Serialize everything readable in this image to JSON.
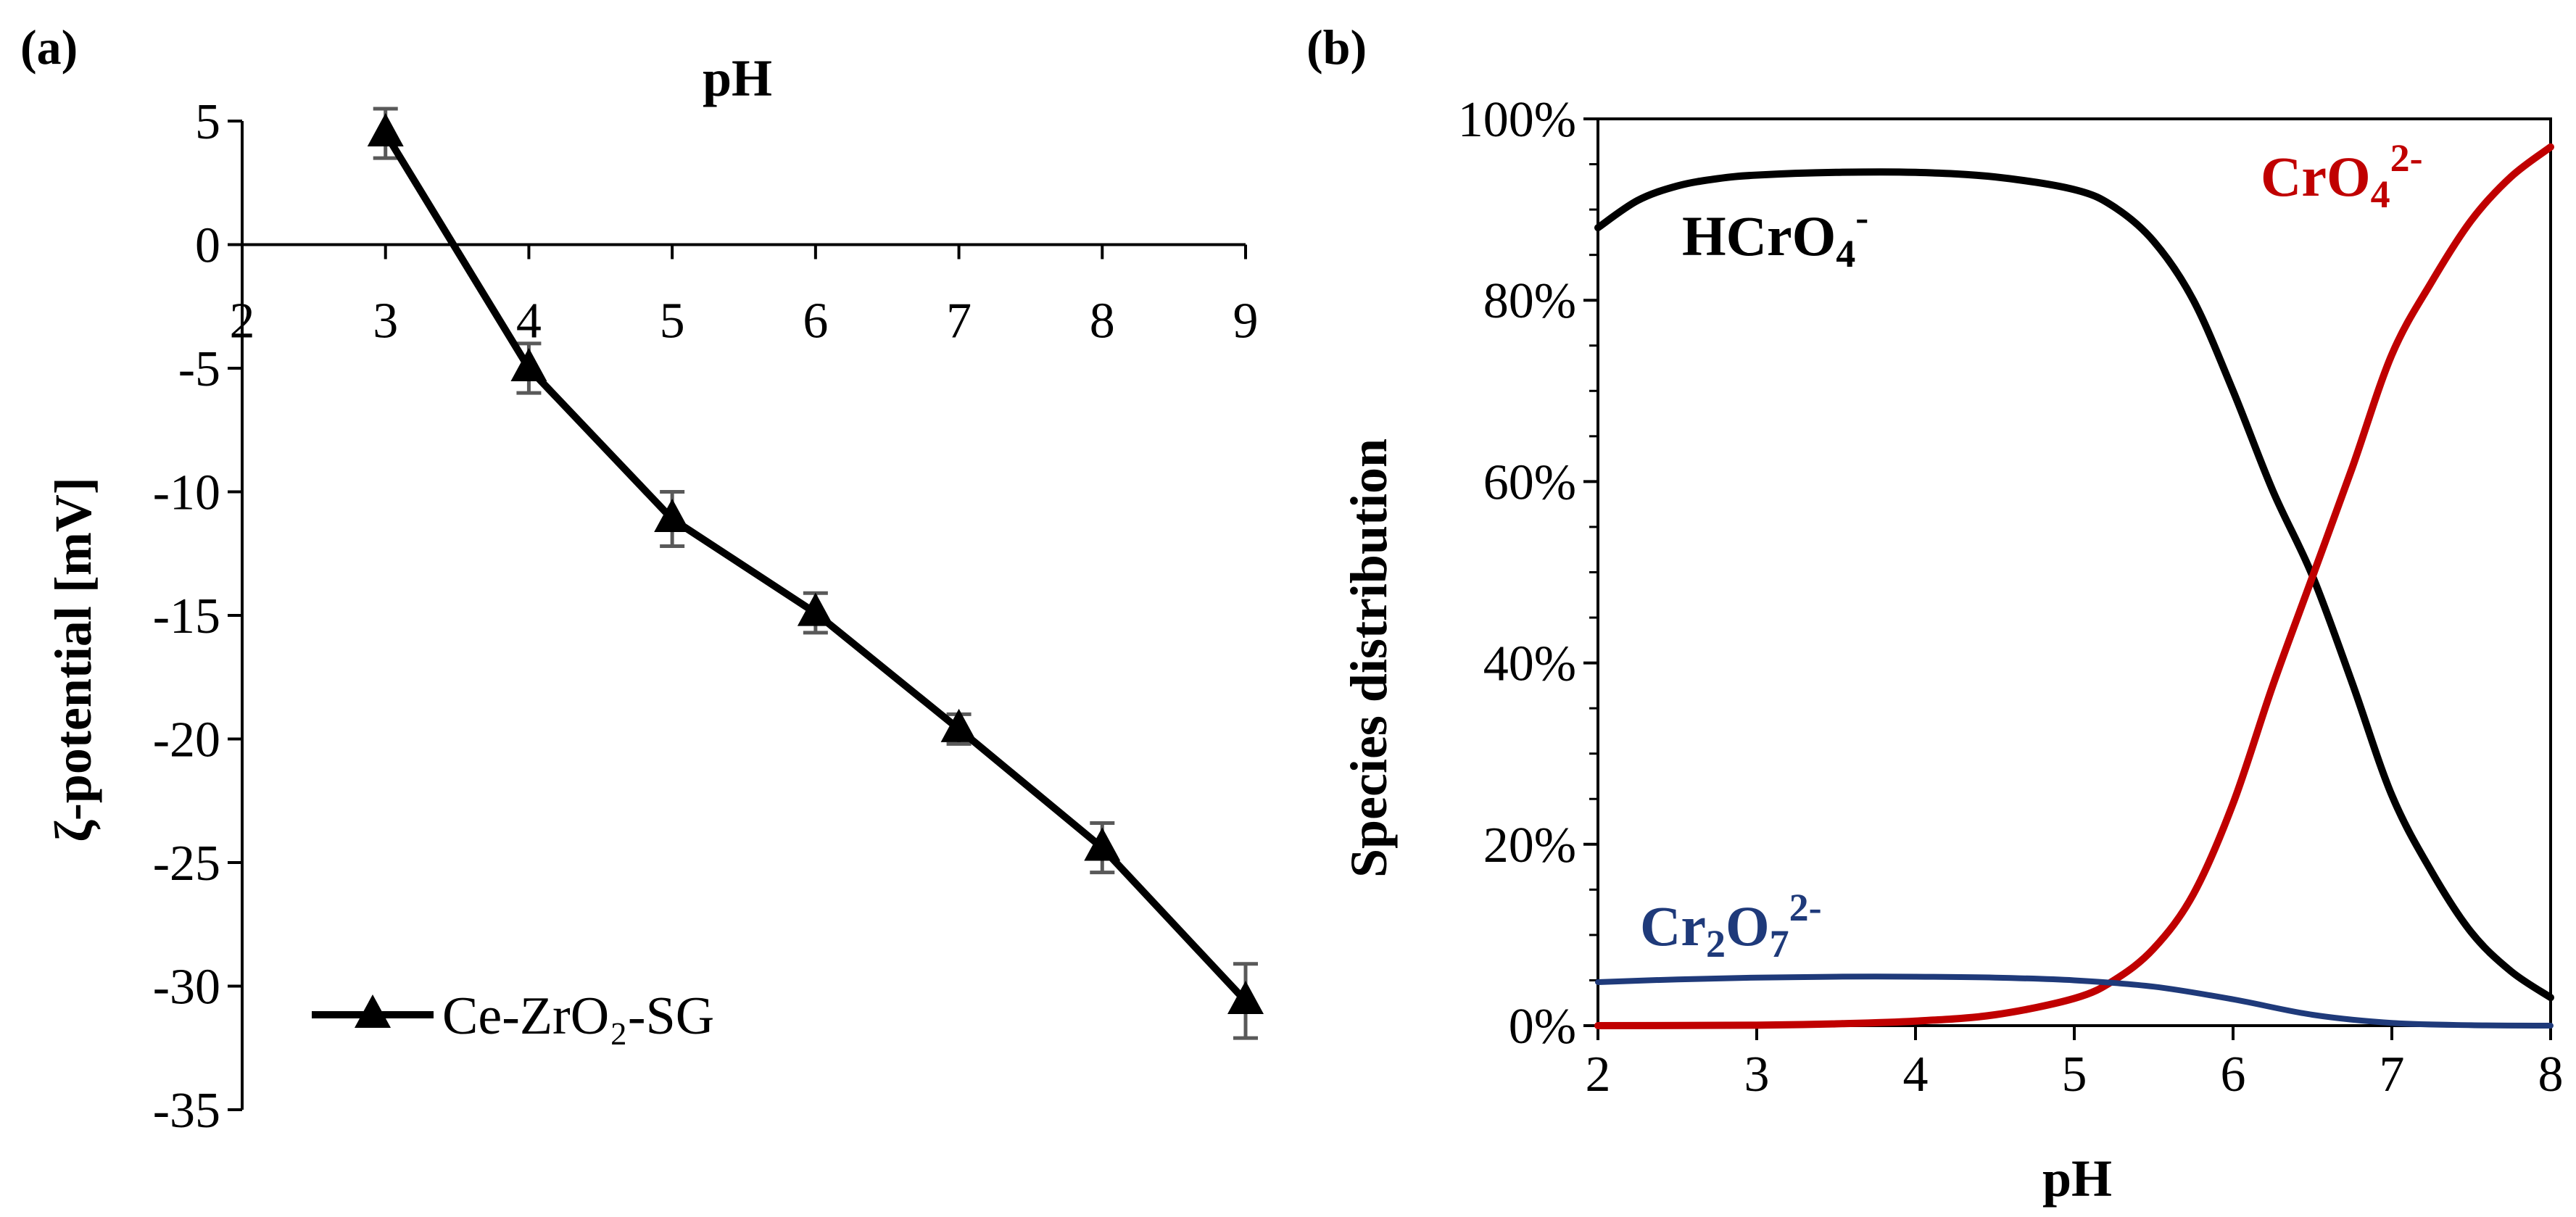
{
  "figure": {
    "panel_a_label": "(a)",
    "panel_b_label": "(b)"
  },
  "chart_data": [
    {
      "id": "a",
      "type": "line",
      "title": "",
      "xlabel": "pH",
      "ylabel": "ζ-potential [mV]",
      "xlim": [
        2,
        9
      ],
      "ylim": [
        -35,
        5
      ],
      "xticks": [
        2,
        3,
        4,
        5,
        6,
        7,
        8,
        9
      ],
      "yticks": [
        5,
        0,
        -5,
        -10,
        -15,
        -20,
        -25,
        -30,
        -35
      ],
      "x_axis_position": "y=0, labels below axis line",
      "grid": false,
      "legend": {
        "position": "bottom-left",
        "entries": [
          "Ce-ZrO₂-SG"
        ]
      },
      "series": [
        {
          "name": "Ce-ZrO₂-SG",
          "marker": "triangle",
          "color": "#000000",
          "x": [
            3,
            4,
            5,
            6,
            7,
            8,
            9
          ],
          "y": [
            4.5,
            -5.0,
            -11.1,
            -14.9,
            -19.6,
            -24.4,
            -30.6
          ],
          "error": [
            1.0,
            1.0,
            1.1,
            0.8,
            0.6,
            1.0,
            1.5
          ]
        }
      ]
    },
    {
      "id": "b",
      "type": "line",
      "title": "",
      "xlabel": "pH",
      "ylabel": "Species distribution",
      "xlim": [
        2,
        8
      ],
      "ylim": [
        0,
        100
      ],
      "xticks": [
        2,
        3,
        4,
        5,
        6,
        7,
        8
      ],
      "yticks": [
        0,
        20,
        40,
        60,
        80,
        100
      ],
      "ytick_labels": [
        "0%",
        "20%",
        "40%",
        "60%",
        "80%",
        "100%"
      ],
      "grid": false,
      "series": [
        {
          "name": "HCrO₄⁻",
          "label_main": "HCrO",
          "label_sub": "4",
          "label_sup": "-",
          "color": "#000000",
          "x": [
            2.0,
            2.25,
            2.5,
            2.75,
            3.0,
            3.5,
            4.0,
            4.5,
            5.0,
            5.25,
            5.5,
            5.75,
            6.0,
            6.25,
            6.5,
            6.75,
            7.0,
            7.25,
            7.5,
            7.75,
            8.0
          ],
          "y": [
            88,
            91,
            92.6,
            93.4,
            93.8,
            94.1,
            94.1,
            93.6,
            92.2,
            90.3,
            86.5,
            80.0,
            70.0,
            59.0,
            49.6,
            37.8,
            25.4,
            17.0,
            10.3,
            6.0,
            3.1
          ]
        },
        {
          "name": "CrO₄²⁻",
          "label_main": "CrO",
          "label_sub": "4",
          "label_sup": "2-",
          "color": "#C00000",
          "x": [
            2.0,
            3.0,
            3.5,
            4.0,
            4.5,
            5.0,
            5.25,
            5.5,
            5.75,
            6.0,
            6.25,
            6.5,
            6.75,
            7.0,
            7.25,
            7.5,
            7.75,
            8.0
          ],
          "y": [
            0,
            0.05,
            0.2,
            0.5,
            1.2,
            3.0,
            5.0,
            8.5,
            14.5,
            24.5,
            37.5,
            49.5,
            61.5,
            74.0,
            82.0,
            88.8,
            93.6,
            96.9
          ]
        },
        {
          "name": "Cr₂O₇²⁻",
          "label_main": "Cr",
          "label_sub": "2",
          "label_main2": "O",
          "label_sub2": "7",
          "label_sup": "2-",
          "color": "#1F3A7A",
          "x": [
            2.0,
            2.5,
            3.0,
            3.5,
            4.0,
            4.5,
            5.0,
            5.5,
            6.0,
            6.5,
            7.0,
            7.5,
            8.0
          ],
          "y": [
            4.8,
            5.1,
            5.3,
            5.4,
            5.4,
            5.3,
            5.0,
            4.3,
            2.9,
            1.2,
            0.3,
            0.05,
            0
          ]
        }
      ]
    }
  ]
}
